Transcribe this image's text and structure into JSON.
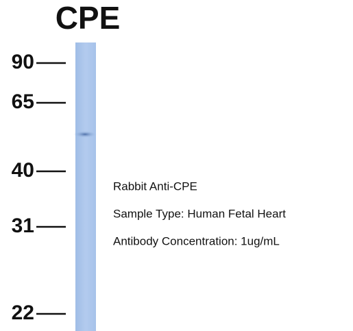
{
  "title": "CPE",
  "markers": [
    "90",
    "65",
    "40",
    "31",
    "22"
  ],
  "annotation": [
    "Rabbit Anti-CPE",
    "Sample Type: Human Fetal Heart",
    "Antibody Concentration: 1ug/mL"
  ]
}
